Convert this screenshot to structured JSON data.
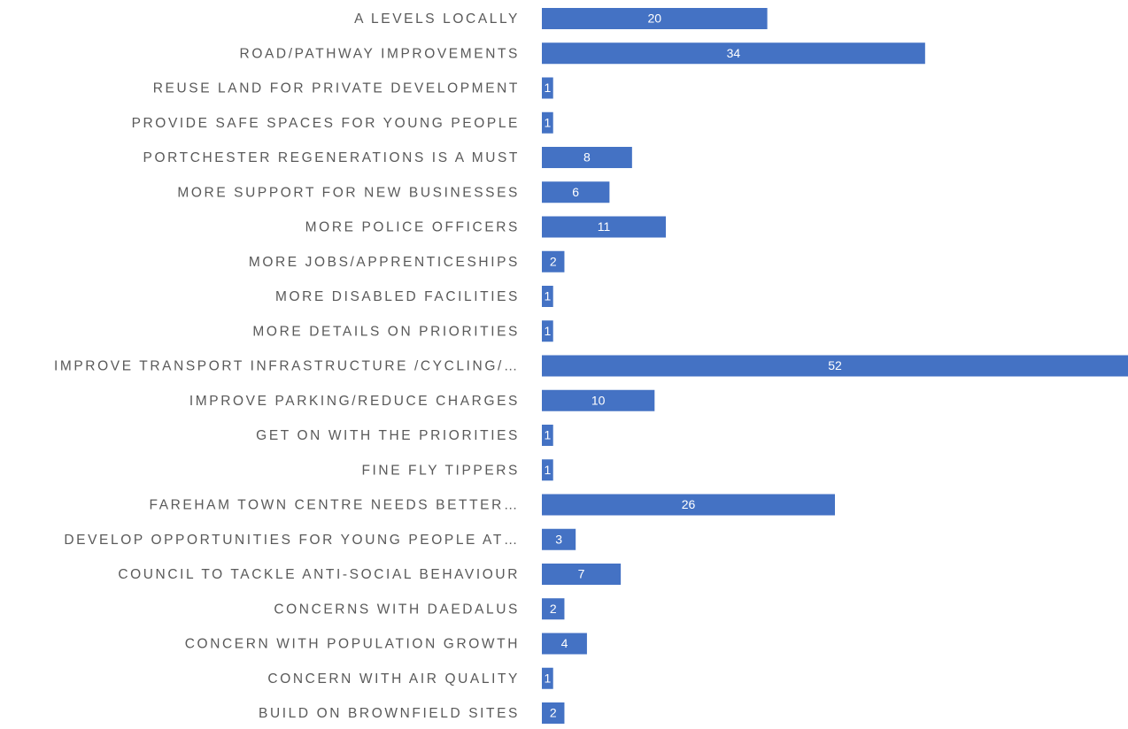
{
  "chart_data": {
    "type": "bar",
    "orientation": "horizontal",
    "categories": [
      "A LEVELS LOCALLY",
      "ROAD/PATHWAY IMPROVEMENTS",
      "REUSE LAND FOR PRIVATE DEVELOPMENT",
      "PROVIDE SAFE SPACES FOR YOUNG PEOPLE",
      "PORTCHESTER REGENERATIONS IS A MUST",
      "MORE SUPPORT FOR NEW BUSINESSES",
      "MORE POLICE OFFICERS",
      "MORE JOBS/APPRENTICESHIPS",
      "MORE DISABLED FACILITIES",
      "MORE DETAILS ON PRIORITIES",
      "IMPROVE TRANSPORT INFRASTRUCTURE /CYCLING/…",
      "IMPROVE PARKING/REDUCE CHARGES",
      "GET ON WITH THE PRIORITIES",
      "FINE FLY TIPPERS",
      "FAREHAM TOWN CENTRE NEEDS BETTER…",
      "DEVELOP OPPORTUNITIES FOR YOUNG PEOPLE AT…",
      "COUNCIL TO TACKLE ANTI-SOCIAL BEHAVIOUR",
      "CONCERNS WITH DAEDALUS",
      "CONCERN WITH POPULATION GROWTH",
      "CONCERN WITH AIR QUALITY",
      "BUILD ON BROWNFIELD SITES"
    ],
    "values": [
      20,
      34,
      1,
      1,
      8,
      6,
      11,
      2,
      1,
      1,
      52,
      10,
      1,
      1,
      26,
      3,
      7,
      2,
      4,
      1,
      2
    ],
    "color": "#4472c4",
    "data_labels": true
  }
}
